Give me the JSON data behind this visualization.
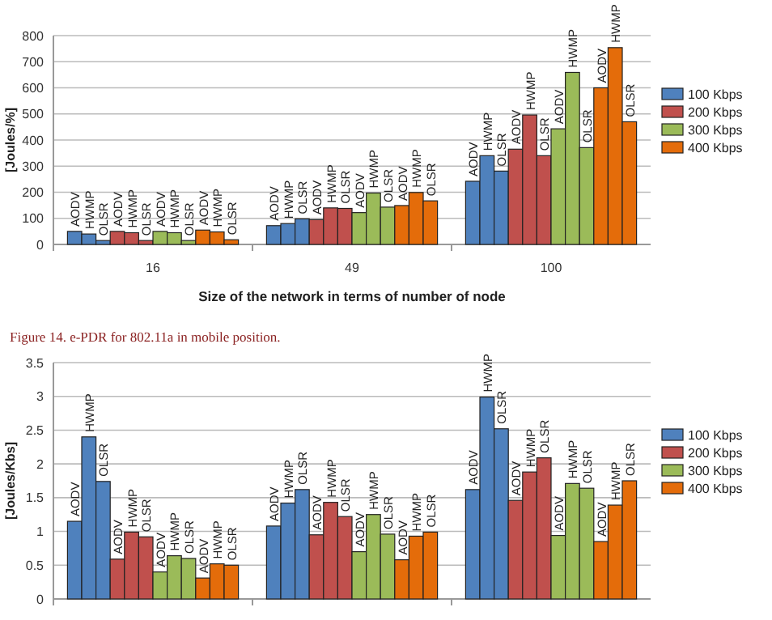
{
  "chart_data": [
    {
      "type": "bar",
      "xlabel": "Size of the network in terms of number of node",
      "ylabel": "[Joules/%]",
      "categories": [
        "16",
        "49",
        "100"
      ],
      "ylim": [
        0,
        800
      ],
      "yticks": [
        0,
        100,
        200,
        300,
        400,
        500,
        600,
        700,
        800
      ],
      "grid": "y",
      "legend": "right",
      "annotations": [
        "Figure 14. e-PDR for 802.11a in mobile position."
      ],
      "series": [
        {
          "name": "100 Kbps",
          "color": "#4f81bd",
          "values": [
            50,
            72,
            242
          ],
          "value_labels": [
            "AODV",
            "AODV",
            "AODV"
          ]
        },
        {
          "color": "#4f81bd",
          "values": [
            40,
            80,
            340
          ],
          "value_labels": [
            "HWMP",
            "HWMP",
            "HWMP"
          ]
        },
        {
          "color": "#4f81bd",
          "values": [
            15,
            98,
            281
          ],
          "value_labels": [
            "OLSR",
            "OLSR",
            "OLSR"
          ]
        },
        {
          "name": "200 Kbps",
          "color": "#c0504d",
          "values": [
            50,
            95,
            365
          ],
          "value_labels": [
            "AODV",
            "AODV",
            "AODV"
          ]
        },
        {
          "color": "#c0504d",
          "values": [
            45,
            140,
            496
          ],
          "value_labels": [
            "HWMP",
            "HWMP",
            "HWMP"
          ]
        },
        {
          "color": "#c0504d",
          "values": [
            15,
            138,
            340
          ],
          "value_labels": [
            "OLSR",
            "OLSR",
            "OLSR"
          ]
        },
        {
          "name": "300 Kbps",
          "color": "#9bbb59",
          "values": [
            50,
            122,
            443
          ],
          "value_labels": [
            "AODV",
            "AODV",
            "AODV"
          ]
        },
        {
          "color": "#9bbb59",
          "values": [
            45,
            197,
            659
          ],
          "value_labels": [
            "HWMP",
            "HWMP",
            "HWMP"
          ]
        },
        {
          "color": "#9bbb59",
          "values": [
            15,
            143,
            371
          ],
          "value_labels": [
            "OLSR",
            "OLSR",
            "OLSR"
          ]
        },
        {
          "name": "400 Kbps",
          "color": "#e46c0a",
          "values": [
            55,
            149,
            600
          ],
          "value_labels": [
            "AODV",
            "AODV",
            "AODV"
          ]
        },
        {
          "color": "#e46c0a",
          "values": [
            48,
            199,
            754
          ],
          "value_labels": [
            "HWMP",
            "HWMP",
            "HWMP"
          ]
        },
        {
          "color": "#e46c0a",
          "values": [
            18,
            167,
            470
          ],
          "value_labels": [
            "OLSR",
            "OLSR",
            "OLSR"
          ]
        }
      ]
    },
    {
      "type": "bar",
      "ylabel": "[Joules/Kbs]",
      "categories": [
        null,
        null,
        null
      ],
      "ylim": [
        0,
        3.5
      ],
      "yticks": [
        0,
        0.5,
        1,
        1.5,
        2,
        2.5,
        3,
        3.5
      ],
      "grid": "y",
      "legend": "right",
      "series": [
        {
          "name": "100 Kbps",
          "color": "#4f81bd",
          "values": [
            1.15,
            1.08,
            1.62
          ],
          "value_labels": [
            "AODV",
            "AODV",
            "AODV"
          ]
        },
        {
          "color": "#4f81bd",
          "values": [
            2.4,
            1.42,
            2.99
          ],
          "value_labels": [
            "HWMP",
            "HWMP",
            "HWMP"
          ]
        },
        {
          "color": "#4f81bd",
          "values": [
            1.74,
            1.62,
            2.52
          ],
          "value_labels": [
            "OLSR",
            "OLSR",
            "OLSR"
          ]
        },
        {
          "name": "200 Kbps",
          "color": "#c0504d",
          "values": [
            0.59,
            0.95,
            1.46
          ],
          "value_labels": [
            "AODV",
            "AODV",
            "AODV"
          ]
        },
        {
          "color": "#c0504d",
          "values": [
            0.99,
            1.43,
            1.88
          ],
          "value_labels": [
            "HWMP",
            "HWMP",
            "HWMP"
          ]
        },
        {
          "color": "#c0504d",
          "values": [
            0.92,
            1.22,
            2.09
          ],
          "value_labels": [
            "OLSR",
            "OLSR",
            "OLSR"
          ]
        },
        {
          "name": "300 Kbps",
          "color": "#9bbb59",
          "values": [
            0.4,
            0.7,
            0.94
          ],
          "value_labels": [
            "AODV",
            "AODV",
            "AODV"
          ]
        },
        {
          "color": "#9bbb59",
          "values": [
            0.64,
            1.25,
            1.71
          ],
          "value_labels": [
            "HWMP",
            "HWMP",
            "HWMP"
          ]
        },
        {
          "color": "#9bbb59",
          "values": [
            0.6,
            0.96,
            1.64
          ],
          "value_labels": [
            "OLSR",
            "OLSR",
            "OLSR"
          ]
        },
        {
          "name": "400 Kbps",
          "color": "#e46c0a",
          "values": [
            0.31,
            0.58,
            0.85
          ],
          "value_labels": [
            "AODV",
            "AODV",
            "AODV"
          ]
        },
        {
          "color": "#e46c0a",
          "values": [
            0.52,
            0.93,
            1.39
          ],
          "value_labels": [
            "HWMP",
            "HWMP",
            "HWMP"
          ]
        },
        {
          "color": "#e46c0a",
          "values": [
            0.5,
            0.99,
            1.75
          ],
          "value_labels": [
            "OLSR",
            "OLSR",
            "OLSR"
          ]
        }
      ]
    }
  ]
}
